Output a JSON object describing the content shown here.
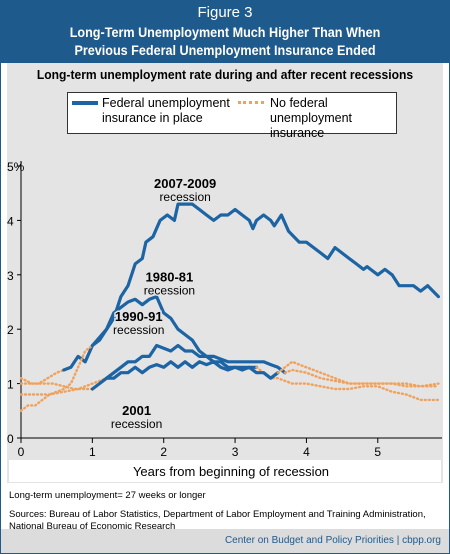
{
  "figure_label": "Figure 3",
  "title_line1": "Long-Term Unemployment Much Higher Than When",
  "title_line2": "Previous Federal Unemployment Insurance Ended",
  "footnote_definition": "Long-term unemployment= 27 weeks or longer",
  "sources": "Sources: Bureau of Labor Statistics, Department of Labor Employment and Training Administration, National Bureau of Economic Research",
  "footer": "Center on Budget and Policy Priorities | cbpp.org",
  "colors": {
    "federal_ui": "#1c64a3",
    "no_federal_ui": "#f0a15b",
    "brand": "#1e5a8c"
  },
  "chart_data": {
    "type": "line",
    "title": "Long-term unemployment rate during and after recent recessions",
    "xlabel": "Years from beginning of recession",
    "ylabel": "",
    "xlim": [
      0,
      5.9
    ],
    "ylim": [
      0,
      5
    ],
    "x_ticks": [
      "0",
      "1",
      "2",
      "3",
      "4",
      "5"
    ],
    "y_ticks": [
      "0",
      "1",
      "2",
      "3",
      "4",
      "5%"
    ],
    "legend": [
      "Federal unemployment insurance in place",
      "No federal unemployment insurance"
    ],
    "legend_placement": "top",
    "series": [
      {
        "name": "2007-2009 recession",
        "label_lines": [
          "2007-2009",
          "recession"
        ],
        "label_at": [
          2.3,
          4.6
        ],
        "segments": [
          {
            "federal_ui": false,
            "points": [
              [
                0,
                1.0
              ],
              [
                0.25,
                1.0
              ],
              [
                0.5,
                1.2
              ],
              [
                0.6,
                1.25
              ]
            ]
          },
          {
            "federal_ui": true,
            "points": [
              [
                0.6,
                1.25
              ],
              [
                0.7,
                1.3
              ],
              [
                0.8,
                1.5
              ],
              [
                0.9,
                1.4
              ],
              [
                1.0,
                1.7
              ],
              [
                1.1,
                1.8
              ],
              [
                1.2,
                2.0
              ],
              [
                1.3,
                2.2
              ],
              [
                1.4,
                2.6
              ],
              [
                1.5,
                2.8
              ],
              [
                1.6,
                3.2
              ],
              [
                1.7,
                3.3
              ],
              [
                1.75,
                3.6
              ],
              [
                1.85,
                3.7
              ],
              [
                1.95,
                4.0
              ],
              [
                2.05,
                4.1
              ],
              [
                2.15,
                4.0
              ],
              [
                2.2,
                4.3
              ],
              [
                2.4,
                4.3
              ],
              [
                2.5,
                4.2
              ],
              [
                2.6,
                4.1
              ],
              [
                2.7,
                4.0
              ],
              [
                2.8,
                4.1
              ],
              [
                2.9,
                4.1
              ],
              [
                3.0,
                4.2
              ],
              [
                3.1,
                4.1
              ],
              [
                3.2,
                4.0
              ],
              [
                3.25,
                3.85
              ],
              [
                3.3,
                4.0
              ],
              [
                3.4,
                4.1
              ],
              [
                3.5,
                4.0
              ],
              [
                3.55,
                3.9
              ],
              [
                3.65,
                4.1
              ],
              [
                3.75,
                3.8
              ],
              [
                3.9,
                3.6
              ],
              [
                4.0,
                3.6
              ],
              [
                4.1,
                3.5
              ],
              [
                4.2,
                3.4
              ],
              [
                4.3,
                3.3
              ],
              [
                4.4,
                3.5
              ],
              [
                4.6,
                3.3
              ],
              [
                4.7,
                3.2
              ],
              [
                4.8,
                3.1
              ],
              [
                4.85,
                3.15
              ],
              [
                4.9,
                3.1
              ],
              [
                5.0,
                3.0
              ],
              [
                5.1,
                3.1
              ],
              [
                5.2,
                3.0
              ],
              [
                5.3,
                2.8
              ],
              [
                5.5,
                2.8
              ],
              [
                5.6,
                2.7
              ],
              [
                5.7,
                2.8
              ],
              [
                5.85,
                2.6
              ]
            ]
          }
        ]
      },
      {
        "name": "1980-81 recession",
        "label_lines": [
          "1980-81",
          "recession"
        ],
        "label_at": [
          2.08,
          2.88
        ],
        "segments": [
          {
            "federal_ui": false,
            "points": [
              [
                0,
                0.5
              ],
              [
                0.1,
                0.6
              ],
              [
                0.2,
                0.6
              ],
              [
                0.3,
                0.7
              ],
              [
                0.4,
                0.8
              ],
              [
                0.5,
                0.85
              ],
              [
                0.6,
                0.9
              ],
              [
                0.7,
                1.0
              ],
              [
                0.8,
                1.3
              ],
              [
                0.9,
                1.6
              ],
              [
                1.0,
                1.7
              ]
            ]
          },
          {
            "federal_ui": true,
            "points": [
              [
                1.0,
                1.7
              ],
              [
                1.1,
                1.85
              ],
              [
                1.2,
                2.0
              ],
              [
                1.3,
                2.3
              ],
              [
                1.4,
                2.4
              ],
              [
                1.5,
                2.5
              ],
              [
                1.6,
                2.55
              ],
              [
                1.7,
                2.45
              ],
              [
                1.8,
                2.55
              ],
              [
                1.9,
                2.6
              ],
              [
                2.0,
                2.3
              ],
              [
                2.1,
                2.2
              ],
              [
                2.2,
                2.0
              ],
              [
                2.3,
                1.9
              ],
              [
                2.4,
                1.8
              ],
              [
                2.5,
                1.6
              ],
              [
                2.6,
                1.5
              ],
              [
                2.7,
                1.4
              ],
              [
                2.8,
                1.4
              ],
              [
                2.9,
                1.3
              ],
              [
                3.0,
                1.3
              ],
              [
                3.1,
                1.3
              ],
              [
                3.2,
                1.3
              ],
              [
                3.3,
                1.3
              ]
            ]
          },
          {
            "federal_ui": false,
            "points": [
              [
                3.3,
                1.3
              ],
              [
                3.4,
                1.2
              ],
              [
                3.5,
                1.1
              ],
              [
                3.6,
                1.1
              ],
              [
                3.8,
                1.0
              ],
              [
                4.0,
                1.0
              ],
              [
                4.2,
                0.95
              ],
              [
                4.4,
                0.9
              ],
              [
                4.6,
                0.9
              ],
              [
                4.8,
                0.95
              ],
              [
                5.0,
                0.95
              ],
              [
                5.2,
                0.85
              ],
              [
                5.4,
                0.8
              ],
              [
                5.6,
                0.7
              ],
              [
                5.85,
                0.7
              ]
            ]
          }
        ]
      },
      {
        "name": "1990-91 recession",
        "label_lines": [
          "1990-91",
          "recession"
        ],
        "label_at": [
          1.65,
          2.15
        ],
        "segments": [
          {
            "federal_ui": false,
            "points": [
              [
                0,
                0.8
              ],
              [
                0.2,
                0.8
              ],
              [
                0.4,
                0.8
              ],
              [
                0.6,
                0.85
              ],
              [
                0.8,
                0.9
              ],
              [
                1.0,
                1.0
              ],
              [
                1.1,
                1.05
              ],
              [
                1.2,
                1.1
              ]
            ]
          },
          {
            "federal_ui": true,
            "points": [
              [
                1.2,
                1.1
              ],
              [
                1.3,
                1.2
              ],
              [
                1.4,
                1.3
              ],
              [
                1.5,
                1.4
              ],
              [
                1.6,
                1.4
              ],
              [
                1.7,
                1.5
              ],
              [
                1.8,
                1.5
              ],
              [
                1.9,
                1.7
              ],
              [
                2.0,
                1.65
              ],
              [
                2.1,
                1.6
              ],
              [
                2.2,
                1.7
              ],
              [
                2.3,
                1.6
              ],
              [
                2.4,
                1.6
              ],
              [
                2.5,
                1.5
              ],
              [
                2.6,
                1.5
              ],
              [
                2.7,
                1.5
              ],
              [
                2.8,
                1.45
              ],
              [
                2.9,
                1.4
              ],
              [
                3.0,
                1.4
              ],
              [
                3.2,
                1.4
              ],
              [
                3.4,
                1.4
              ],
              [
                3.5,
                1.35
              ],
              [
                3.6,
                1.3
              ],
              [
                3.7,
                1.2
              ]
            ]
          },
          {
            "federal_ui": false,
            "points": [
              [
                3.7,
                1.2
              ],
              [
                3.8,
                1.25
              ],
              [
                4.0,
                1.2
              ],
              [
                4.2,
                1.1
              ],
              [
                4.4,
                1.05
              ],
              [
                4.6,
                1.0
              ],
              [
                4.8,
                1.0
              ],
              [
                5.0,
                1.0
              ],
              [
                5.2,
                1.0
              ],
              [
                5.4,
                0.95
              ],
              [
                5.6,
                0.95
              ],
              [
                5.85,
                0.95
              ]
            ]
          }
        ]
      },
      {
        "name": "2001 recession",
        "label_lines": [
          "2001",
          "recession"
        ],
        "label_at": [
          1.62,
          0.42
        ],
        "segments": [
          {
            "federal_ui": false,
            "points": [
              [
                0,
                1.1
              ],
              [
                0.15,
                1.0
              ],
              [
                0.3,
                1.0
              ],
              [
                0.45,
                1.0
              ],
              [
                0.6,
                0.95
              ],
              [
                0.75,
                0.9
              ],
              [
                0.9,
                0.9
              ],
              [
                1.0,
                0.9
              ]
            ]
          },
          {
            "federal_ui": true,
            "points": [
              [
                1.0,
                0.9
              ],
              [
                1.1,
                1.0
              ],
              [
                1.2,
                1.1
              ],
              [
                1.3,
                1.1
              ],
              [
                1.4,
                1.2
              ],
              [
                1.5,
                1.2
              ],
              [
                1.6,
                1.3
              ],
              [
                1.7,
                1.2
              ],
              [
                1.8,
                1.3
              ],
              [
                1.9,
                1.35
              ],
              [
                2.0,
                1.3
              ],
              [
                2.1,
                1.4
              ],
              [
                2.2,
                1.3
              ],
              [
                2.3,
                1.4
              ],
              [
                2.4,
                1.3
              ],
              [
                2.5,
                1.4
              ],
              [
                2.6,
                1.35
              ],
              [
                2.7,
                1.4
              ],
              [
                2.8,
                1.3
              ],
              [
                2.9,
                1.25
              ],
              [
                3.0,
                1.3
              ],
              [
                3.1,
                1.25
              ],
              [
                3.2,
                1.3
              ],
              [
                3.3,
                1.2
              ],
              [
                3.4,
                1.2
              ],
              [
                3.5,
                1.1
              ],
              [
                3.6,
                1.2
              ]
            ]
          },
          {
            "federal_ui": false,
            "points": [
              [
                3.6,
                1.2
              ],
              [
                3.7,
                1.3
              ],
              [
                3.8,
                1.4
              ],
              [
                3.9,
                1.35
              ],
              [
                4.0,
                1.3
              ],
              [
                4.2,
                1.2
              ],
              [
                4.4,
                1.1
              ],
              [
                4.6,
                1.0
              ],
              [
                4.8,
                1.0
              ],
              [
                5.0,
                1.0
              ],
              [
                5.2,
                1.0
              ],
              [
                5.4,
                1.0
              ],
              [
                5.6,
                0.95
              ],
              [
                5.85,
                1.0
              ]
            ]
          }
        ]
      }
    ]
  }
}
